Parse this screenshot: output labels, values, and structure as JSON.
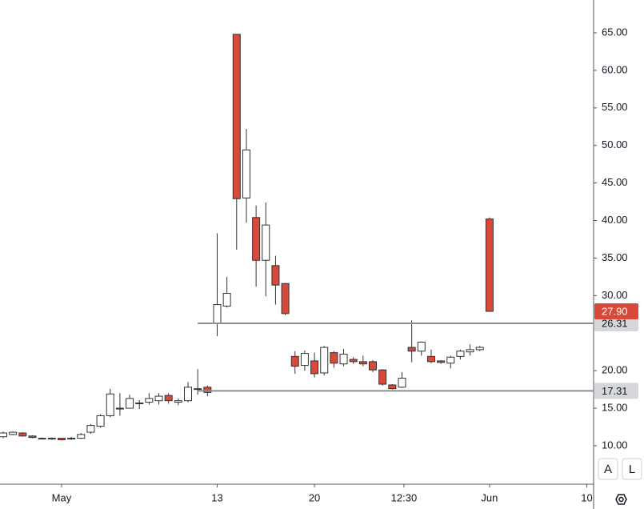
{
  "chart_data": {
    "type": "candlestick",
    "x": [
      0,
      1,
      2,
      3,
      4,
      5,
      6,
      7,
      8,
      9,
      10,
      11,
      12,
      13,
      14,
      15,
      16,
      17,
      18,
      19,
      20,
      21,
      22,
      23,
      24,
      25,
      26,
      27,
      28,
      29,
      30,
      31,
      32,
      33,
      34,
      35,
      36,
      37,
      38,
      39,
      40,
      41,
      42,
      43,
      44,
      45,
      46,
      47,
      48,
      49,
      50
    ],
    "open": [
      11.2,
      11.5,
      11.7,
      11.3,
      11.0,
      11.0,
      11.0,
      10.9,
      11.0,
      11.8,
      12.6,
      14.0,
      15.0,
      15.0,
      15.7,
      15.8,
      16.0,
      16.7,
      15.8,
      16.0,
      17.6,
      17.8,
      26.3,
      28.6,
      64.8,
      43.0,
      40.4,
      34.7,
      34.0,
      31.6,
      21.9,
      20.7,
      21.3,
      19.7,
      22.4,
      20.9,
      21.5,
      21.2,
      21.2,
      20.1,
      18.1,
      17.8,
      23.1,
      22.6,
      21.9,
      21.3,
      21.0,
      21.9,
      22.5,
      22.8,
      40.2
    ],
    "high": [
      11.9,
      11.9,
      11.8,
      11.4,
      11.1,
      11.1,
      11.0,
      11.2,
      11.7,
      12.9,
      14.2,
      17.6,
      17.0,
      16.8,
      16.1,
      17.0,
      17.0,
      17.0,
      16.3,
      18.5,
      20.2,
      18.0,
      38.3,
      32.5,
      64.8,
      52.2,
      42.0,
      42.4,
      35.3,
      31.7,
      22.6,
      22.7,
      22.4,
      23.3,
      22.6,
      22.9,
      21.8,
      22.0,
      21.4,
      20.2,
      18.2,
      19.8,
      26.7,
      23.9,
      22.8,
      21.4,
      22.0,
      22.8,
      23.5,
      23.3,
      40.4
    ],
    "low": [
      11.0,
      11.4,
      11.2,
      11.0,
      10.9,
      10.8,
      10.7,
      10.8,
      10.9,
      11.6,
      12.4,
      13.8,
      14.0,
      15.0,
      14.9,
      15.5,
      15.5,
      15.6,
      15.4,
      15.8,
      16.8,
      16.6,
      24.6,
      28.4,
      36.1,
      39.7,
      31.2,
      29.9,
      28.8,
      27.4,
      19.6,
      20.0,
      19.1,
      19.4,
      20.4,
      20.6,
      20.9,
      20.6,
      19.8,
      18.0,
      17.5,
      17.7,
      21.1,
      22.0,
      21.0,
      20.9,
      20.3,
      21.5,
      22.0,
      22.6,
      27.9
    ],
    "close": [
      11.7,
      11.8,
      11.3,
      11.1,
      11.0,
      10.9,
      10.8,
      11.0,
      11.5,
      12.7,
      14.0,
      16.9,
      14.9,
      16.3,
      15.6,
      16.3,
      16.6,
      16.0,
      16.0,
      17.8,
      17.5,
      17.1,
      28.8,
      30.3,
      42.9,
      49.4,
      34.7,
      39.4,
      31.4,
      27.6,
      20.6,
      22.3,
      19.6,
      23.1,
      21.0,
      22.2,
      21.2,
      20.9,
      20.1,
      18.2,
      17.6,
      19.0,
      22.6,
      23.8,
      21.2,
      21.1,
      21.8,
      22.6,
      22.8,
      23.1,
      27.9
    ],
    "up_color": "#ffffff",
    "down_color": "#d9493a",
    "xlim": [
      -0.33,
      60.7
    ],
    "xticks": [
      {
        "value": 6,
        "label": "May"
      },
      {
        "value": 22,
        "label": "13"
      },
      {
        "value": 32,
        "label": "20"
      },
      {
        "value": 41.2,
        "label": "12:30"
      },
      {
        "value": 50,
        "label": "Jun"
      },
      {
        "value": 60,
        "label": "10"
      }
    ],
    "ylim": [
      4.88,
      69.37
    ],
    "yticks": [
      {
        "value": 10,
        "label": "10.00"
      },
      {
        "value": 15,
        "label": "15.00"
      },
      {
        "value": 20,
        "label": "20.00"
      },
      {
        "value": 30,
        "label": "30.00"
      },
      {
        "value": 35,
        "label": "35.00"
      },
      {
        "value": 40,
        "label": "40.00"
      },
      {
        "value": 45,
        "label": "45.00"
      },
      {
        "value": 50,
        "label": "50.00"
      },
      {
        "value": 55,
        "label": "55.00"
      },
      {
        "value": 60,
        "label": "60.00"
      },
      {
        "value": 65,
        "label": "65.00"
      }
    ],
    "price_lines": [
      {
        "value": 26.31,
        "from_x": 20,
        "color": "#8a8d94"
      },
      {
        "value": 17.31,
        "from_x": 20,
        "color": "#8a8d94"
      }
    ],
    "last_price": {
      "value": 27.9,
      "label": "27.90",
      "color": "#d9493a"
    }
  },
  "controls": [
    "A",
    "L"
  ]
}
